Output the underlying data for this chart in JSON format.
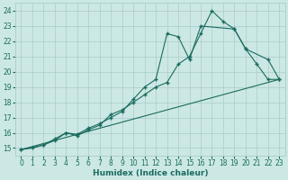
{
  "xlabel": "Humidex (Indice chaleur)",
  "bg_color": "#cce8e4",
  "grid_color": "#aaccca",
  "line_color": "#1a6b60",
  "xlim": [
    -0.5,
    23.5
  ],
  "ylim": [
    14.5,
    24.5
  ],
  "xticks": [
    0,
    1,
    2,
    3,
    4,
    5,
    6,
    7,
    8,
    9,
    10,
    11,
    12,
    13,
    14,
    15,
    16,
    17,
    18,
    19,
    20,
    21,
    22,
    23
  ],
  "yticks": [
    15,
    16,
    17,
    18,
    19,
    20,
    21,
    22,
    23,
    24
  ],
  "curve1_x": [
    0,
    1,
    2,
    3,
    4,
    5,
    6,
    7,
    8,
    9,
    10,
    11,
    12,
    13,
    14,
    15,
    16,
    17,
    18,
    19,
    20,
    21,
    22,
    23
  ],
  "curve1_y": [
    14.9,
    15.0,
    15.2,
    15.5,
    16.0,
    15.8,
    16.2,
    16.5,
    17.2,
    17.5,
    18.0,
    18.5,
    19.0,
    19.3,
    20.5,
    21.0,
    22.5,
    24.0,
    23.3,
    22.8,
    21.5,
    20.5,
    19.5,
    19.5
  ],
  "curve2_x": [
    0,
    2,
    3,
    4,
    5,
    6,
    7,
    8,
    9,
    10,
    11,
    12,
    13,
    14,
    15,
    16,
    19,
    20,
    22,
    23
  ],
  "curve2_y": [
    14.9,
    15.2,
    15.6,
    16.0,
    15.9,
    16.3,
    16.6,
    17.0,
    17.4,
    18.2,
    19.0,
    19.5,
    22.5,
    22.3,
    20.8,
    23.0,
    22.8,
    21.5,
    20.8,
    19.5
  ],
  "line3_x": [
    0,
    23
  ],
  "line3_y": [
    14.9,
    19.5
  ]
}
